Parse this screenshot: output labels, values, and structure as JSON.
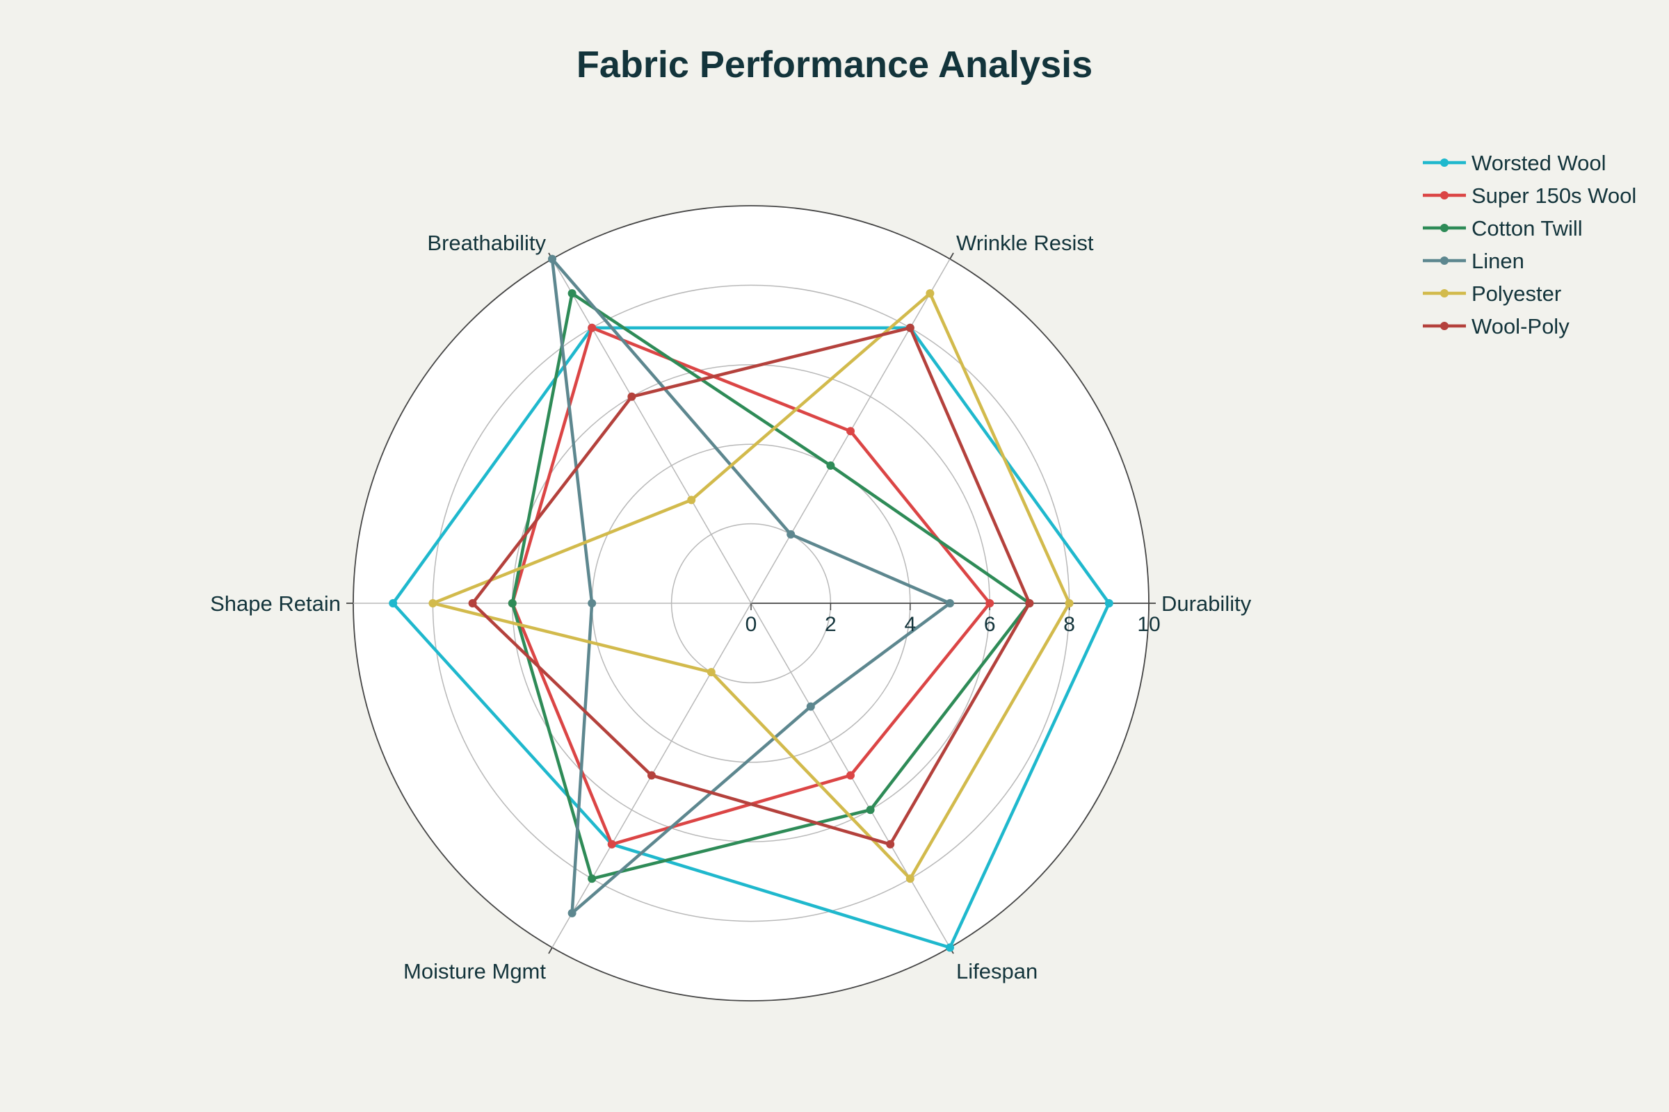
{
  "chart_data": {
    "type": "radar",
    "title": "Fabric Performance Analysis",
    "axes": [
      "Durability",
      "Wrinkle Resist",
      "Breathability",
      "Shape Retain",
      "Moisture Mgmt",
      "Lifespan"
    ],
    "radial_range": [
      0,
      10
    ],
    "radial_ticks": [
      "0",
      "2",
      "4",
      "6",
      "8",
      "10"
    ],
    "legend_position": "top-right",
    "grid": true,
    "series": [
      {
        "name": "Worsted Wool",
        "color": "#1fb8cd",
        "values": [
          9,
          8,
          8,
          9,
          7,
          10
        ]
      },
      {
        "name": "Super 150s Wool",
        "color": "#db4545",
        "values": [
          6,
          5,
          8,
          6,
          7,
          5
        ]
      },
      {
        "name": "Cotton Twill",
        "color": "#2e8b57",
        "values": [
          7,
          4,
          9,
          6,
          8,
          6
        ]
      },
      {
        "name": "Linen",
        "color": "#5d878f",
        "values": [
          5,
          2,
          10,
          4,
          9,
          3
        ]
      },
      {
        "name": "Polyester",
        "color": "#d2ba4c",
        "values": [
          8,
          9,
          3,
          8,
          2,
          8
        ]
      },
      {
        "name": "Wool-Poly",
        "color": "#b4413c",
        "values": [
          7,
          8,
          6,
          7,
          5,
          7
        ]
      }
    ]
  }
}
